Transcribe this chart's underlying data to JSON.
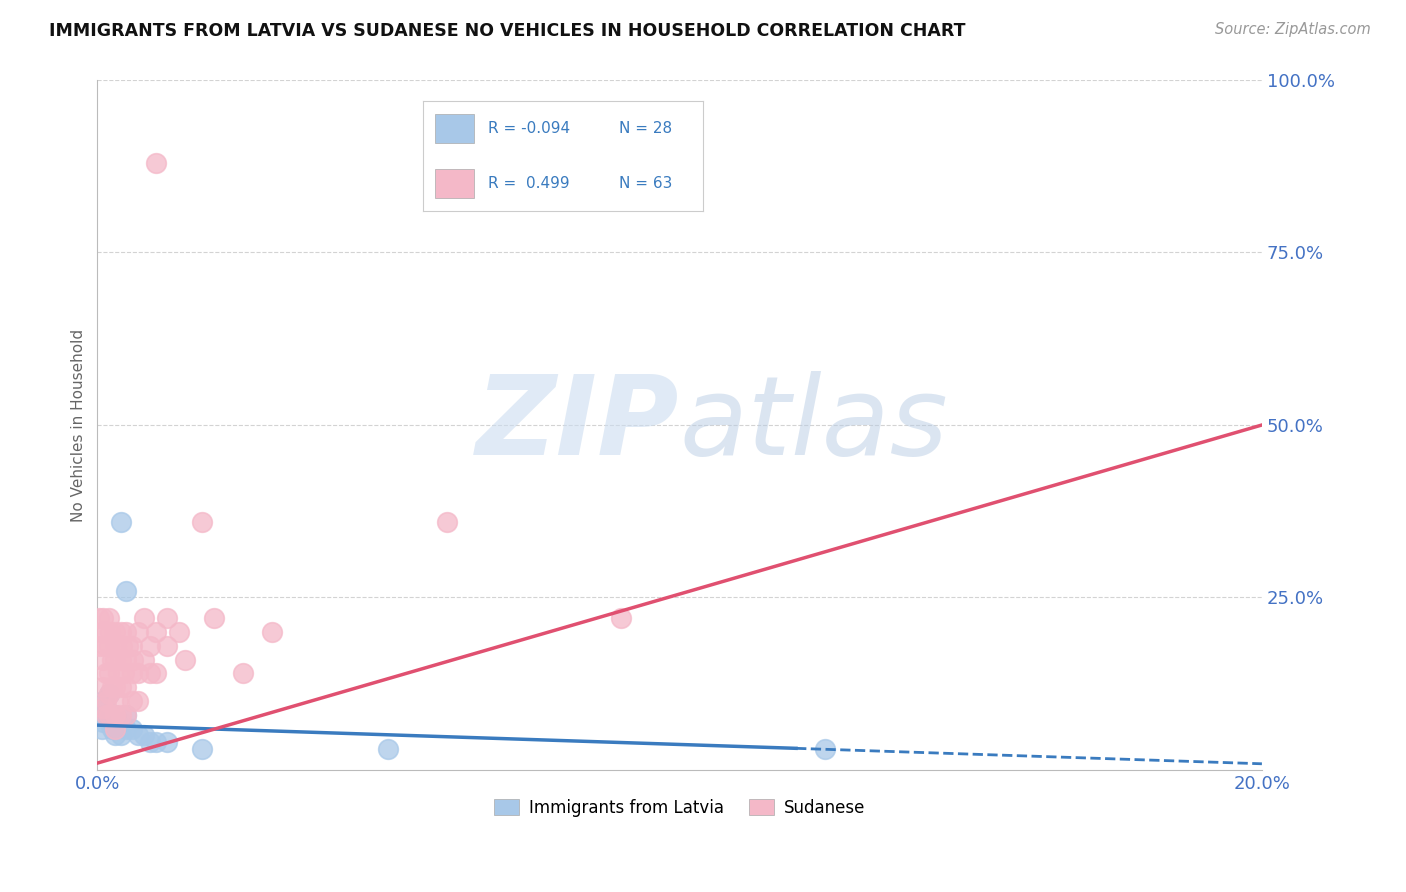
{
  "title": "IMMIGRANTS FROM LATVIA VS SUDANESE NO VEHICLES IN HOUSEHOLD CORRELATION CHART",
  "source": "Source: ZipAtlas.com",
  "ylabel": "No Vehicles in Household",
  "xlim": [
    0.0,
    0.2
  ],
  "ylim": [
    0.0,
    1.0
  ],
  "ytick_right": [
    0.0,
    0.25,
    0.5,
    0.75,
    1.0
  ],
  "ytick_right_labels": [
    "",
    "25.0%",
    "50.0%",
    "75.0%",
    "100.0%"
  ],
  "latvia_color": "#a8c8e8",
  "sudanese_color": "#f4b8c8",
  "latvia_line_color": "#3a7bbf",
  "sudanese_line_color": "#e05070",
  "legend_R_latvia": "-0.094",
  "legend_N_latvia": "28",
  "legend_R_sudanese": "0.499",
  "legend_N_sudanese": "63",
  "background_color": "#ffffff",
  "grid_color": "#c8c8c8",
  "latvia_scatter": [
    [
      0.0005,
      0.08
    ],
    [
      0.0008,
      0.06
    ],
    [
      0.001,
      0.1
    ],
    [
      0.001,
      0.07
    ],
    [
      0.0015,
      0.09
    ],
    [
      0.002,
      0.11
    ],
    [
      0.002,
      0.07
    ],
    [
      0.0022,
      0.08
    ],
    [
      0.0025,
      0.06
    ],
    [
      0.003,
      0.08
    ],
    [
      0.003,
      0.06
    ],
    [
      0.003,
      0.05
    ],
    [
      0.0035,
      0.07
    ],
    [
      0.004,
      0.36
    ],
    [
      0.004,
      0.07
    ],
    [
      0.004,
      0.05
    ],
    [
      0.005,
      0.26
    ],
    [
      0.005,
      0.08
    ],
    [
      0.005,
      0.06
    ],
    [
      0.006,
      0.06
    ],
    [
      0.007,
      0.05
    ],
    [
      0.008,
      0.05
    ],
    [
      0.009,
      0.04
    ],
    [
      0.01,
      0.04
    ],
    [
      0.012,
      0.04
    ],
    [
      0.018,
      0.03
    ],
    [
      0.05,
      0.03
    ],
    [
      0.125,
      0.03
    ]
  ],
  "sudanese_scatter": [
    [
      0.0003,
      0.22
    ],
    [
      0.0005,
      0.18
    ],
    [
      0.0008,
      0.2
    ],
    [
      0.001,
      0.22
    ],
    [
      0.001,
      0.16
    ],
    [
      0.001,
      0.12
    ],
    [
      0.001,
      0.09
    ],
    [
      0.0012,
      0.2
    ],
    [
      0.0015,
      0.18
    ],
    [
      0.0015,
      0.14
    ],
    [
      0.0015,
      0.1
    ],
    [
      0.0015,
      0.08
    ],
    [
      0.002,
      0.22
    ],
    [
      0.002,
      0.18
    ],
    [
      0.002,
      0.14
    ],
    [
      0.002,
      0.11
    ],
    [
      0.002,
      0.08
    ],
    [
      0.0022,
      0.2
    ],
    [
      0.0025,
      0.16
    ],
    [
      0.0025,
      0.12
    ],
    [
      0.003,
      0.2
    ],
    [
      0.003,
      0.16
    ],
    [
      0.003,
      0.12
    ],
    [
      0.003,
      0.08
    ],
    [
      0.003,
      0.06
    ],
    [
      0.0032,
      0.18
    ],
    [
      0.0035,
      0.14
    ],
    [
      0.0035,
      0.1
    ],
    [
      0.004,
      0.2
    ],
    [
      0.004,
      0.16
    ],
    [
      0.004,
      0.12
    ],
    [
      0.004,
      0.08
    ],
    [
      0.0042,
      0.18
    ],
    [
      0.0045,
      0.14
    ],
    [
      0.005,
      0.2
    ],
    [
      0.005,
      0.16
    ],
    [
      0.005,
      0.12
    ],
    [
      0.005,
      0.08
    ],
    [
      0.0052,
      0.18
    ],
    [
      0.006,
      0.18
    ],
    [
      0.006,
      0.14
    ],
    [
      0.006,
      0.1
    ],
    [
      0.0062,
      0.16
    ],
    [
      0.007,
      0.2
    ],
    [
      0.007,
      0.14
    ],
    [
      0.007,
      0.1
    ],
    [
      0.008,
      0.22
    ],
    [
      0.008,
      0.16
    ],
    [
      0.009,
      0.18
    ],
    [
      0.009,
      0.14
    ],
    [
      0.01,
      0.2
    ],
    [
      0.01,
      0.14
    ],
    [
      0.012,
      0.22
    ],
    [
      0.012,
      0.18
    ],
    [
      0.014,
      0.2
    ],
    [
      0.015,
      0.16
    ],
    [
      0.018,
      0.36
    ],
    [
      0.02,
      0.22
    ],
    [
      0.025,
      0.14
    ],
    [
      0.03,
      0.2
    ],
    [
      0.06,
      0.36
    ],
    [
      0.09,
      0.22
    ],
    [
      0.01,
      0.88
    ]
  ]
}
